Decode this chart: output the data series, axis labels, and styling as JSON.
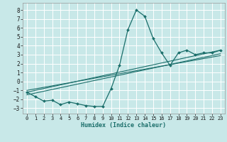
{
  "title": "",
  "xlabel": "Humidex (Indice chaleur)",
  "bg_color": "#c8e8e8",
  "grid_color": "#ffffff",
  "line_color": "#1a6e6a",
  "xlim": [
    -0.5,
    23.5
  ],
  "ylim": [
    -3.6,
    8.8
  ],
  "yticks": [
    -3,
    -2,
    -1,
    0,
    1,
    2,
    3,
    4,
    5,
    6,
    7,
    8
  ],
  "xticks": [
    0,
    1,
    2,
    3,
    4,
    5,
    6,
    7,
    8,
    9,
    10,
    11,
    12,
    13,
    14,
    15,
    16,
    17,
    18,
    19,
    20,
    21,
    22,
    23
  ],
  "curve1_x": [
    0,
    1,
    2,
    3,
    4,
    5,
    6,
    7,
    8,
    9,
    10,
    11,
    12,
    13,
    14,
    15,
    16,
    17,
    18,
    19,
    20,
    21,
    22,
    23
  ],
  "curve1_y": [
    -1.2,
    -1.7,
    -2.2,
    -2.1,
    -2.6,
    -2.3,
    -2.5,
    -2.7,
    -2.8,
    -2.8,
    -0.8,
    1.8,
    5.8,
    8.0,
    7.3,
    4.8,
    3.2,
    1.8,
    3.2,
    3.5,
    3.0,
    3.2,
    3.2,
    3.5
  ],
  "line1_x": [
    0,
    23
  ],
  "line1_y": [
    -1.2,
    3.5
  ],
  "line2_x": [
    0,
    23
  ],
  "line2_y": [
    -1.5,
    3.1
  ],
  "line3_x": [
    0,
    23
  ],
  "line3_y": [
    -1.0,
    2.9
  ]
}
